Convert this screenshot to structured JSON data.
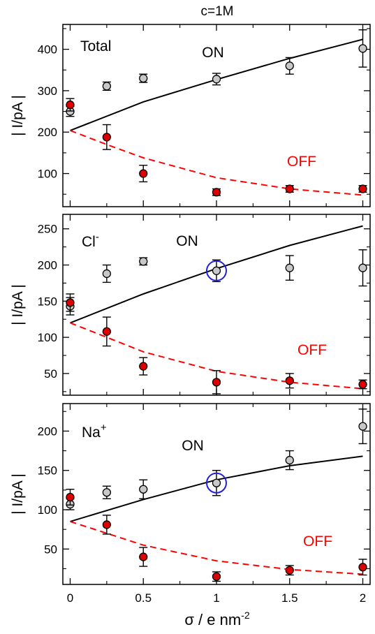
{
  "figure": {
    "title": "c=1M",
    "xlabel": "σ / e nm",
    "xlabel_sup": "-2",
    "x_ticks": [
      "0",
      "0.5",
      "1",
      "1.5",
      "2"
    ]
  },
  "colors": {
    "on_marker": "#c8c8c8",
    "off_marker": "#dd0000",
    "on_line": "#000000",
    "off_line": "#ff0000",
    "highlight_circle": "#1f1fe0"
  },
  "chart_data": [
    {
      "type": "scatter",
      "panel": "Total",
      "panel_label": "Total",
      "panel_label_sup": "",
      "ylabel": "| I/pA |",
      "xlim": [
        -0.05,
        2.05
      ],
      "ylim": [
        20,
        460
      ],
      "yticks": [
        100,
        200,
        300,
        400
      ],
      "on_label": "ON",
      "off_label": "OFF",
      "series": [
        {
          "name": "ON",
          "kind": "points",
          "x": [
            0,
            0.25,
            0.5,
            1,
            1.5,
            2
          ],
          "y": [
            250,
            311,
            330,
            328,
            360,
            402
          ],
          "err": [
            12,
            10,
            10,
            14,
            20,
            45
          ]
        },
        {
          "name": "OFF",
          "kind": "points",
          "x": [
            0,
            0.25,
            0.5,
            1,
            1.5,
            2
          ],
          "y": [
            266,
            188,
            100,
            55,
            63,
            63
          ],
          "err": [
            15,
            30,
            20,
            8,
            8,
            8
          ]
        },
        {
          "name": "ON",
          "kind": "line",
          "x": [
            0,
            0.5,
            1,
            1.5,
            2
          ],
          "y": [
            204,
            273,
            327,
            378,
            424
          ]
        },
        {
          "name": "OFF",
          "kind": "line",
          "x": [
            0,
            0.25,
            0.5,
            1,
            1.5,
            2
          ],
          "y": [
            204,
            170,
            138,
            90,
            63,
            48
          ]
        }
      ],
      "highlight": null
    },
    {
      "type": "scatter",
      "panel": "Cl-",
      "panel_label": "Cl",
      "panel_label_sup": "-",
      "ylabel": "| I/pA |",
      "xlim": [
        -0.05,
        2.05
      ],
      "ylim": [
        20,
        270
      ],
      "yticks": [
        50,
        100,
        150,
        200,
        250
      ],
      "on_label": "ON",
      "off_label": "OFF",
      "series": [
        {
          "name": "ON",
          "kind": "points",
          "x": [
            0,
            0.25,
            0.5,
            1,
            1.5,
            2
          ],
          "y": [
            143,
            188,
            205,
            192,
            196,
            196
          ],
          "err": [
            12,
            12,
            5,
            15,
            17,
            25
          ]
        },
        {
          "name": "OFF",
          "kind": "points",
          "x": [
            0,
            0.25,
            0.5,
            1,
            1.5,
            2
          ],
          "y": [
            148,
            108,
            60,
            38,
            40,
            35
          ],
          "err": [
            12,
            20,
            12,
            16,
            10,
            6
          ]
        },
        {
          "name": "ON",
          "kind": "line",
          "x": [
            0,
            0.5,
            1,
            1.5,
            2
          ],
          "y": [
            120,
            160,
            195,
            227,
            254
          ]
        },
        {
          "name": "OFF",
          "kind": "line",
          "x": [
            0,
            0.25,
            0.5,
            1,
            1.5,
            2
          ],
          "y": [
            120,
            100,
            80,
            53,
            38,
            29
          ]
        }
      ],
      "highlight": {
        "x": 1,
        "y": 192
      }
    },
    {
      "type": "scatter",
      "panel": "Na+",
      "panel_label": "Na",
      "panel_label_sup": "+",
      "ylabel": "| I/pA |",
      "xlim": [
        -0.05,
        2.05
      ],
      "ylim": [
        5,
        235
      ],
      "yticks": [
        50,
        100,
        150,
        200
      ],
      "on_label": "ON",
      "off_label": "OFF",
      "series": [
        {
          "name": "ON",
          "kind": "points",
          "x": [
            0,
            0.25,
            0.5,
            1,
            1.5,
            2
          ],
          "y": [
            107,
            122,
            126,
            134,
            163,
            206
          ],
          "err": [
            7,
            8,
            12,
            16,
            12,
            22
          ]
        },
        {
          "name": "OFF",
          "kind": "points",
          "x": [
            0,
            0.25,
            0.5,
            1,
            1.5,
            2
          ],
          "y": [
            116,
            81,
            40,
            15,
            23,
            27
          ],
          "err": [
            10,
            12,
            12,
            6,
            6,
            10
          ]
        },
        {
          "name": "ON",
          "kind": "line",
          "x": [
            0,
            0.5,
            1,
            1.5,
            2
          ],
          "y": [
            85,
            113,
            138,
            156,
            168
          ]
        },
        {
          "name": "OFF",
          "kind": "line",
          "x": [
            0,
            0.25,
            0.5,
            1,
            1.5,
            2
          ],
          "y": [
            85,
            70,
            55,
            35,
            24,
            18
          ]
        }
      ],
      "highlight": {
        "x": 1,
        "y": 134
      }
    }
  ]
}
